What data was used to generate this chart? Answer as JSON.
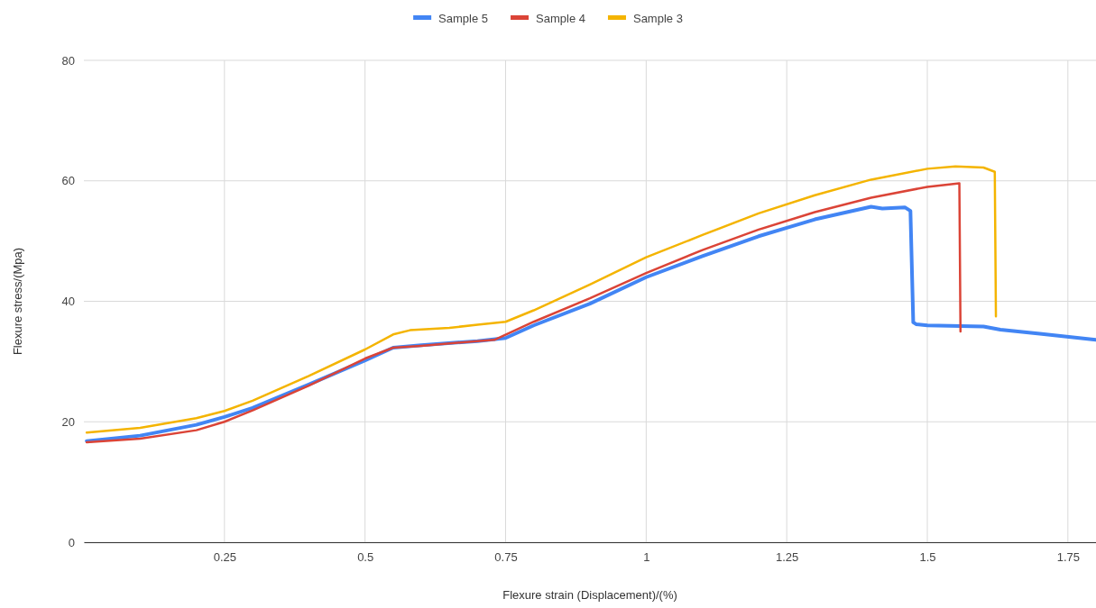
{
  "chart_data": {
    "type": "line",
    "xlabel": "Flexure strain (Displacement)/(%)",
    "ylabel": "Flexure stress/(Mpa)",
    "xlim": [
      0,
      1.8
    ],
    "xticks": [
      0.25,
      0.5,
      0.75,
      1,
      1.25,
      1.5,
      1.75
    ],
    "ylim": [
      0,
      80
    ],
    "yticks": [
      0,
      20,
      40,
      60,
      80
    ],
    "grid": true,
    "legend": "top",
    "marker": "none",
    "line_style": "solid",
    "series": [
      {
        "name": "Sample 5",
        "color": "#4285f4",
        "x": [
          0.005,
          0.1,
          0.2,
          0.25,
          0.3,
          0.4,
          0.5,
          0.55,
          0.6,
          0.7,
          0.75,
          0.8,
          0.9,
          1.0,
          1.1,
          1.2,
          1.3,
          1.4,
          1.42,
          1.46,
          1.47,
          1.475,
          1.48,
          1.5,
          1.6,
          1.63,
          1.7,
          1.8
        ],
        "values": [
          16.8,
          17.7,
          19.5,
          20.8,
          22.3,
          26.2,
          30.2,
          32.3,
          32.7,
          33.4,
          33.9,
          36,
          39.6,
          44.0,
          47.5,
          50.8,
          53.6,
          55.7,
          55.4,
          55.6,
          55.0,
          36.5,
          36.2,
          36,
          35.8,
          35.3,
          34.6,
          33.6
        ]
      },
      {
        "name": "Sample 4",
        "color": "#db4437",
        "x": [
          0.005,
          0.1,
          0.2,
          0.25,
          0.3,
          0.4,
          0.5,
          0.55,
          0.6,
          0.7,
          0.73,
          0.8,
          0.9,
          1.0,
          1.1,
          1.2,
          1.3,
          1.4,
          1.5,
          1.557,
          1.559
        ],
        "values": [
          16.6,
          17.2,
          18.6,
          20.0,
          21.9,
          26.0,
          30.5,
          32.3,
          32.6,
          33.4,
          33.6,
          36.6,
          40.5,
          44.7,
          48.5,
          51.9,
          54.8,
          57.2,
          59.0,
          59.6,
          35.0
        ]
      },
      {
        "name": "Sample 3",
        "color": "#f4b400",
        "x": [
          0.005,
          0.1,
          0.2,
          0.25,
          0.3,
          0.4,
          0.5,
          0.55,
          0.58,
          0.65,
          0.7,
          0.75,
          0.8,
          0.9,
          1.0,
          1.1,
          1.2,
          1.3,
          1.4,
          1.5,
          1.55,
          1.6,
          1.62,
          1.622
        ],
        "values": [
          18.2,
          19.0,
          20.6,
          21.8,
          23.5,
          27.6,
          32.0,
          34.5,
          35.2,
          35.6,
          36.1,
          36.6,
          38.5,
          42.8,
          47.3,
          51.0,
          54.6,
          57.6,
          60.2,
          62.0,
          62.4,
          62.2,
          61.5,
          37.5
        ]
      }
    ]
  }
}
